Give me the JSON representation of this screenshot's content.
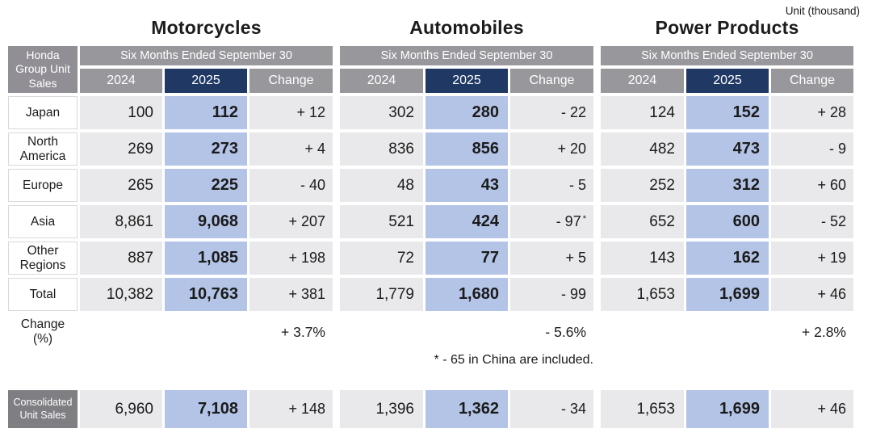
{
  "unit_note": "Unit (thousand)",
  "corner_label": "Honda Group Unit Sales",
  "groups": {
    "m": {
      "title": "Motorcycles",
      "period": "Six Months Ended September 30",
      "y2024": "2024",
      "y2025": "2025",
      "change": "Change"
    },
    "a": {
      "title": "Automobiles",
      "period": "Six Months Ended September 30",
      "y2024": "2024",
      "y2025": "2025",
      "change": "Change"
    },
    "p": {
      "title": "Power Products",
      "period": "Six Months Ended September 30",
      "y2024": "2024",
      "y2025": "2025",
      "change": "Change"
    }
  },
  "rows": [
    {
      "label": "Japan",
      "m": {
        "y2024": "100",
        "y2025": "112",
        "change": "+ 12"
      },
      "a": {
        "y2024": "302",
        "y2025": "280",
        "change": "- 22"
      },
      "p": {
        "y2024": "124",
        "y2025": "152",
        "change": "+ 28"
      }
    },
    {
      "label": "North America",
      "m": {
        "y2024": "269",
        "y2025": "273",
        "change": "+ 4"
      },
      "a": {
        "y2024": "836",
        "y2025": "856",
        "change": "+ 20"
      },
      "p": {
        "y2024": "482",
        "y2025": "473",
        "change": "- 9"
      }
    },
    {
      "label": "Europe",
      "m": {
        "y2024": "265",
        "y2025": "225",
        "change": "- 40"
      },
      "a": {
        "y2024": "48",
        "y2025": "43",
        "change": "- 5"
      },
      "p": {
        "y2024": "252",
        "y2025": "312",
        "change": "+ 60"
      }
    },
    {
      "label": "Asia",
      "m": {
        "y2024": "8,861",
        "y2025": "9,068",
        "change": "+ 207"
      },
      "a": {
        "y2024": "521",
        "y2025": "424",
        "change": "- 97",
        "change_sup": "*"
      },
      "p": {
        "y2024": "652",
        "y2025": "600",
        "change": "- 52"
      }
    },
    {
      "label": "Other Regions",
      "m": {
        "y2024": "887",
        "y2025": "1,085",
        "change": "+ 198"
      },
      "a": {
        "y2024": "72",
        "y2025": "77",
        "change": "+ 5"
      },
      "p": {
        "y2024": "143",
        "y2025": "162",
        "change": "+ 19"
      }
    },
    {
      "label": "Total",
      "m": {
        "y2024": "10,382",
        "y2025": "10,763",
        "change": "+ 381"
      },
      "a": {
        "y2024": "1,779",
        "y2025": "1,680",
        "change": "- 99"
      },
      "p": {
        "y2024": "1,653",
        "y2025": "1,699",
        "change": "+ 46"
      }
    }
  ],
  "change_pct": {
    "label": "Change (%)",
    "m": "+ 3.7%",
    "a": "- 5.6%",
    "p": "+ 2.8%"
  },
  "footnote": "* - 65  in China are included.",
  "consolidated": {
    "label": "Consolidated Unit Sales",
    "m": {
      "y2024": "6,960",
      "y2025": "7,108",
      "change": "+ 148"
    },
    "a": {
      "y2024": "1,396",
      "y2025": "1,362",
      "change": "- 34"
    },
    "p": {
      "y2024": "1,653",
      "y2025": "1,699",
      "change": "+ 46"
    }
  },
  "colors": {
    "header_gray": "#98979c",
    "year2025_navy": "#1f3864",
    "value2025_blue": "#b4c4e7",
    "value_gray": "#e9e9eb",
    "consolidated_gray": "#7f7e83"
  }
}
